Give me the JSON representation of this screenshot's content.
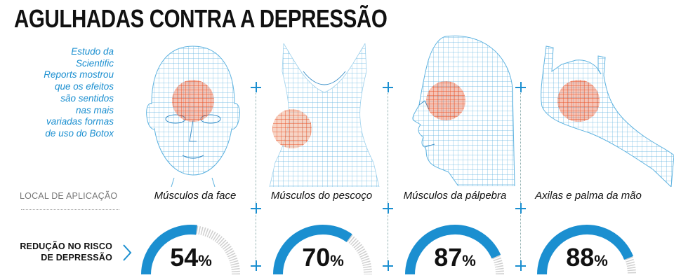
{
  "title": "AGULHADAS CONTRA A DEPRESSÃO",
  "intro_lines": [
    "Estudo da",
    "Scientific",
    "Reports mostrou",
    "que os efeitos",
    "são sentidos",
    "nas mais",
    "variadas formas",
    "de uso do Botox"
  ],
  "row_label_location": "LOCAL DE APLICAÇÃO",
  "row_label_risk_lines": [
    "REDUÇÃO NO RISCO",
    "DE DEPRESSÃO"
  ],
  "colors": {
    "accent": "#1b8fd0",
    "mesh": "#5fb3e0",
    "injection": "#e8542a",
    "gauge_track": "#cfcfcf",
    "text": "#111111"
  },
  "chart_data": {
    "type": "gauge",
    "categories": [
      "Músculos da face",
      "Músculos do pescoço",
      "Músculos da pálpebra",
      "Axilas e palma da mão"
    ],
    "values": [
      54,
      70,
      87,
      88
    ],
    "unit": "%",
    "max": 100,
    "icons": [
      "face-mesh-icon",
      "neck-mesh-icon",
      "profile-mesh-icon",
      "hand-mesh-icon"
    ]
  }
}
